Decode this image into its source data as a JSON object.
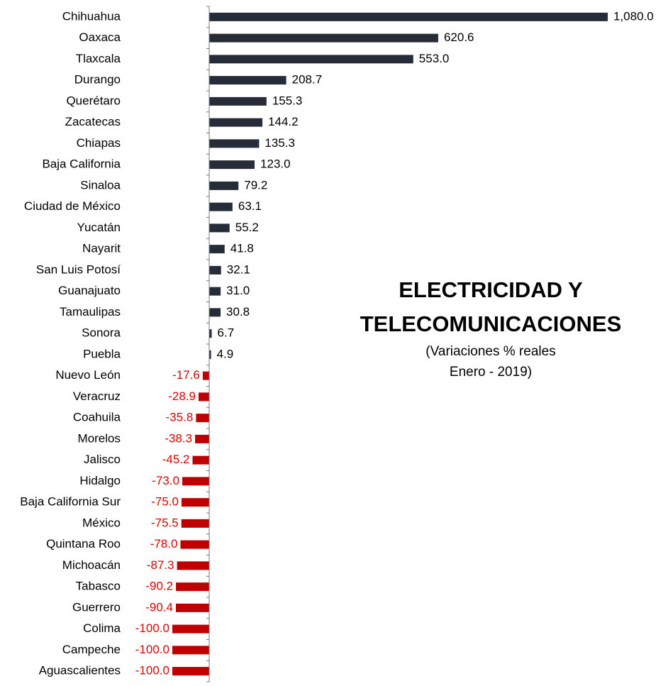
{
  "chart_data": {
    "type": "barh",
    "title": [
      "ELECTRICIDAD Y",
      "TELECOMUNICACIONES"
    ],
    "subtitle": [
      "(Variaciones % reales",
      "Enero - 2019)"
    ],
    "categories": [
      "Chihuahua",
      "Oaxaca",
      "Tlaxcala",
      "Durango",
      "Querétaro",
      "Zacatecas",
      "Chiapas",
      "Baja California",
      "Sinaloa",
      "Ciudad de México",
      "Yucatán",
      "Nayarit",
      "San Luis Potosí",
      "Guanajuato",
      "Tamaulipas",
      "Sonora",
      "Puebla",
      "Nuevo León",
      "Veracruz",
      "Coahuila",
      "Morelos",
      "Jalisco",
      "Hidalgo",
      "Baja California Sur",
      "México",
      "Quintana Roo",
      "Michoacán",
      "Tabasco",
      "Guerrero",
      "Colima",
      "Campeche",
      "Aguascalientes"
    ],
    "values": [
      1080.0,
      620.6,
      553.0,
      208.7,
      155.3,
      144.2,
      135.3,
      123.0,
      79.2,
      63.1,
      55.2,
      41.8,
      32.1,
      31.0,
      30.8,
      6.7,
      4.9,
      -17.6,
      -28.9,
      -35.8,
      -38.3,
      -45.2,
      -73.0,
      -75.0,
      -75.5,
      -78.0,
      -87.3,
      -90.2,
      -90.4,
      -100.0,
      -100.0,
      -100.0
    ],
    "value_labels": [
      "1,080.0",
      "620.6",
      "553.0",
      "208.7",
      "155.3",
      "144.2",
      "135.3",
      "123.0",
      "79.2",
      "63.1",
      "55.2",
      "41.8",
      "32.1",
      "31.0",
      "30.8",
      "6.7",
      "4.9",
      "-17.6",
      "-28.9",
      "-35.8",
      "-38.3",
      "-45.2",
      "-73.0",
      "-75.0",
      "-75.5",
      "-78.0",
      "-87.3",
      "-90.2",
      "-90.4",
      "-100.0",
      "-100.0",
      "-100.0"
    ],
    "color": "#262d38",
    "negative_color": "#c00000",
    "xlim": [
      -100,
      1080
    ]
  }
}
